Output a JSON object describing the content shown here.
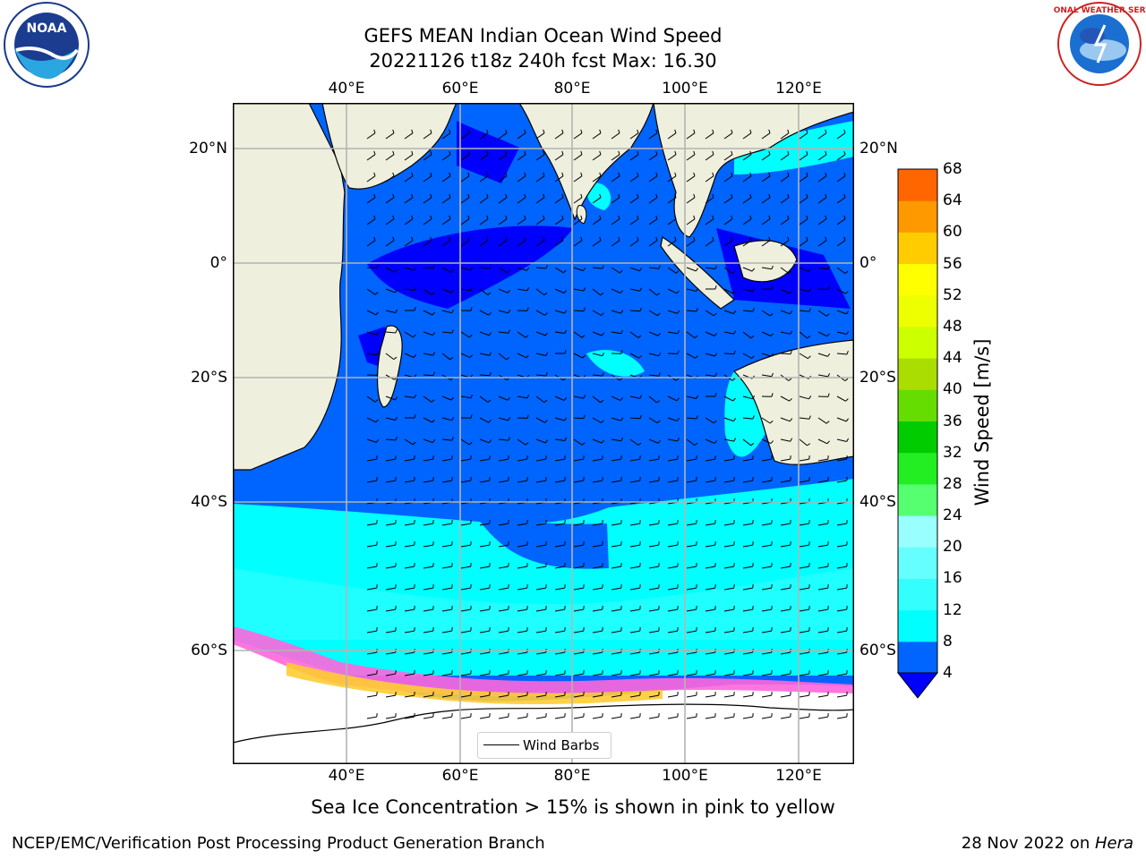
{
  "header": {
    "title_line1": "GEFS MEAN Indian Ocean Wind Speed",
    "title_line2": "20221126 t18z 240h fcst   Max: 16.30"
  },
  "logos": {
    "left": "NOAA",
    "right": "NATIONAL WEATHER SERVICE"
  },
  "map": {
    "lon_ticks": [
      "40°E",
      "60°E",
      "80°E",
      "100°E",
      "120°E"
    ],
    "lat_ticks_left": [
      "20°N",
      "0°",
      "20°S",
      "40°S",
      "60°S"
    ],
    "lat_ticks_right": [
      "20°N",
      "0°",
      "20°S",
      "40°S",
      "60°S"
    ],
    "legend_label": "Wind Barbs",
    "colors": {
      "land": "#efefdd",
      "ice_free": "#ffffff",
      "grid": "#b4b4b4"
    }
  },
  "colorbar": {
    "label": "Wind Speed [m/s]",
    "ticks": [
      "4",
      "8",
      "12",
      "16",
      "20",
      "24",
      "28",
      "32",
      "36",
      "40",
      "44",
      "48",
      "52",
      "56",
      "60",
      "64",
      "68"
    ],
    "colors": [
      "#0064ff",
      "#00ffff",
      "#33ffff",
      "#66ffff",
      "#99ffff",
      "#55ff70",
      "#22ee22",
      "#00cc00",
      "#66dd00",
      "#aadd00",
      "#ccff00",
      "#eeff00",
      "#ffff00",
      "#ffcc00",
      "#ff9900",
      "#ff6600",
      "#ff3300",
      "#ff0000"
    ],
    "under_color": "#0000ff"
  },
  "caption": "Sea Ice Concentration > 15% is shown in pink to yellow",
  "footer": {
    "left": "NCEP/EMC/Verification Post Processing Product Generation Branch",
    "date": "28 Nov 2022 on ",
    "machine": "Hera"
  }
}
